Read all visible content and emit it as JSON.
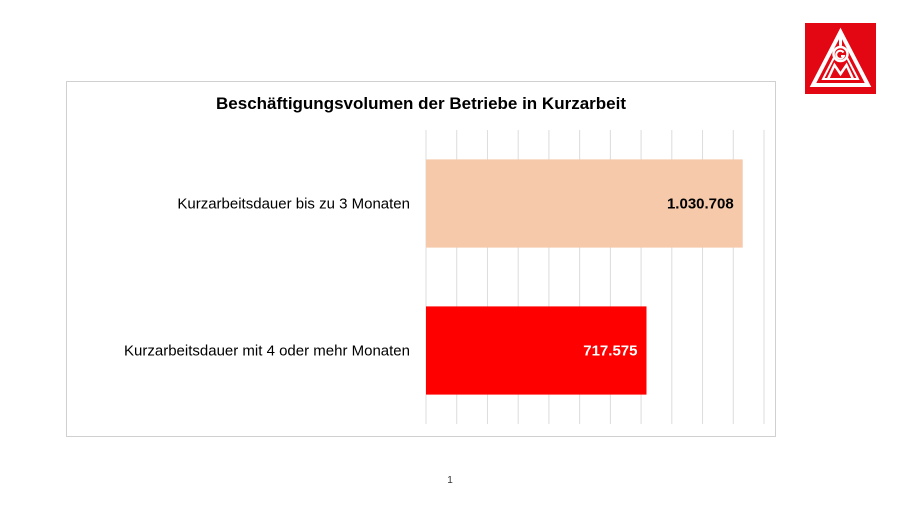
{
  "page": {
    "number": "1"
  },
  "logo": {
    "icon": "igm-logo-icon",
    "color": "#e30613",
    "letters": "IGM"
  },
  "chart_data": {
    "type": "bar",
    "orientation": "horizontal",
    "title": "Beschäftigungsvolumen  der Betriebe in Kurzarbeit",
    "categories": [
      "Kurzarbeitsdauer bis zu 3 Monaten",
      "Kurzarbeitsdauer mit 4 oder mehr Monaten"
    ],
    "values": [
      1030708,
      717575
    ],
    "value_labels": [
      "1.030.708",
      "717.575"
    ],
    "colors": [
      "#f5c9aa",
      "#ff0000"
    ],
    "label_colors": [
      "#000000",
      "#ffffff"
    ],
    "xlim": [
      0,
      1100000
    ],
    "grid": true,
    "xlabel": "",
    "ylabel": ""
  }
}
